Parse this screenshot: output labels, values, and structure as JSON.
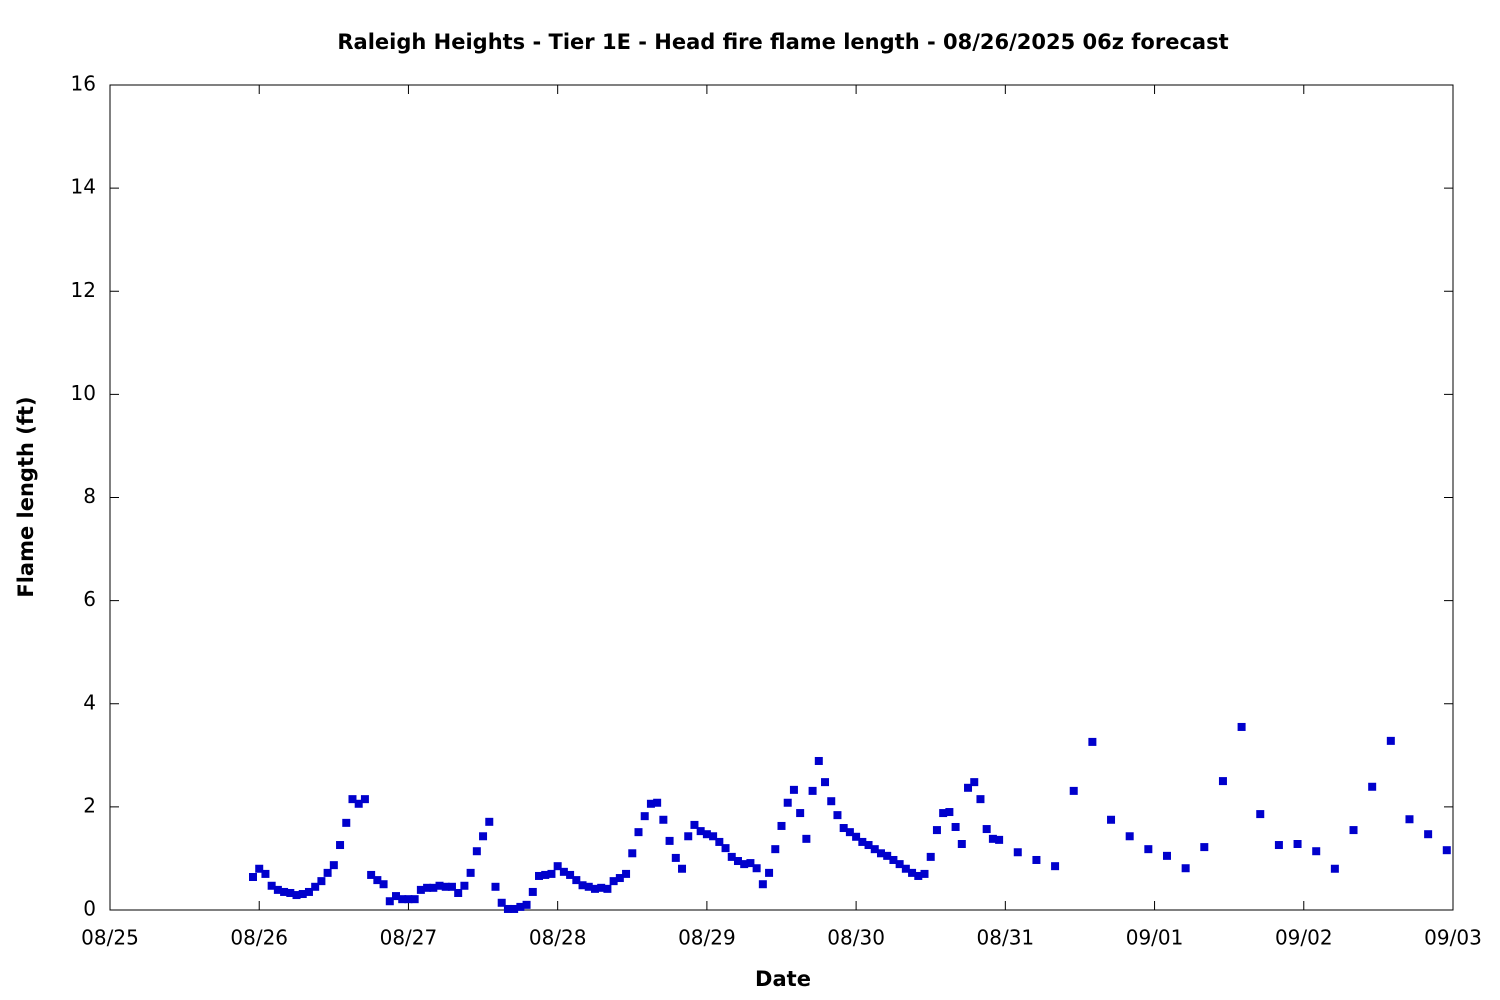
{
  "chart_data": {
    "type": "scatter",
    "title": "Raleigh Heights - Tier 1E - Head fire flame length - 08/26/2025 06z forecast",
    "xlabel": "Date",
    "ylabel": "Flame length (ft)",
    "color": "#0000cc",
    "xlim": [
      0,
      216
    ],
    "ylim": [
      0,
      16
    ],
    "xticks": [
      {
        "value": 0,
        "label": "08/25"
      },
      {
        "value": 24,
        "label": "08/26"
      },
      {
        "value": 48,
        "label": "08/27"
      },
      {
        "value": 72,
        "label": "08/28"
      },
      {
        "value": 96,
        "label": "08/29"
      },
      {
        "value": 120,
        "label": "08/30"
      },
      {
        "value": 144,
        "label": "08/31"
      },
      {
        "value": 168,
        "label": "09/01"
      },
      {
        "value": 192,
        "label": "09/02"
      },
      {
        "value": 216,
        "label": "09/03"
      }
    ],
    "yticks": [
      0,
      2,
      4,
      6,
      8,
      10,
      12,
      14,
      16
    ],
    "x": [
      23,
      24,
      25,
      26,
      27,
      28,
      29,
      30,
      31,
      32,
      33,
      34,
      35,
      36,
      37,
      38,
      39,
      40,
      41,
      42,
      43,
      44,
      45,
      46,
      47,
      48,
      49,
      50,
      51,
      52,
      53,
      54,
      55,
      56,
      57,
      58,
      59,
      60,
      61,
      62,
      63,
      64,
      65,
      66,
      67,
      68,
      69,
      70,
      71,
      72,
      73,
      74,
      75,
      76,
      77,
      78,
      79,
      80,
      81,
      82,
      83,
      84,
      85,
      86,
      87,
      88,
      89,
      90,
      91,
      92,
      93,
      94,
      95,
      96,
      97,
      98,
      99,
      100,
      101,
      102,
      103,
      104,
      105,
      106,
      107,
      108,
      109,
      110,
      111,
      112,
      113,
      114,
      115,
      116,
      117,
      118,
      119,
      120,
      121,
      122,
      123,
      124,
      125,
      126,
      127,
      128,
      129,
      130,
      131,
      132,
      133,
      134,
      135,
      136,
      137,
      138,
      139,
      140,
      141,
      142,
      143,
      146,
      149,
      152,
      155,
      158,
      161,
      164,
      167,
      170,
      173,
      176,
      179,
      182,
      185,
      188,
      191,
      194,
      197,
      200,
      203,
      206,
      209,
      212,
      215
    ],
    "values": [
      0.64,
      0.8,
      0.7,
      0.47,
      0.39,
      0.35,
      0.33,
      0.29,
      0.31,
      0.35,
      0.45,
      0.56,
      0.72,
      0.87,
      1.26,
      1.69,
      2.15,
      2.06,
      2.15,
      0.68,
      0.58,
      0.5,
      0.17,
      0.27,
      0.21,
      0.21,
      0.21,
      0.39,
      0.43,
      0.43,
      0.47,
      0.45,
      0.45,
      0.33,
      0.47,
      0.72,
      1.14,
      1.43,
      1.71,
      0.45,
      0.14,
      0.02,
      0.02,
      0.06,
      0.1,
      0.35,
      0.66,
      0.68,
      0.7,
      0.85,
      0.74,
      0.68,
      0.58,
      0.48,
      0.45,
      0.41,
      0.43,
      0.41,
      0.56,
      0.62,
      0.7,
      1.1,
      1.51,
      1.82,
      2.06,
      2.08,
      1.75,
      1.34,
      1.01,
      0.8,
      1.43,
      1.65,
      1.53,
      1.47,
      1.43,
      1.32,
      1.2,
      1.03,
      0.95,
      0.89,
      0.91,
      0.81,
      0.5,
      0.72,
      1.18,
      1.63,
      2.08,
      2.33,
      1.88,
      1.38,
      2.31,
      2.89,
      2.48,
      2.11,
      1.84,
      1.59,
      1.51,
      1.42,
      1.32,
      1.26,
      1.18,
      1.1,
      1.05,
      0.97,
      0.89,
      0.8,
      0.72,
      0.66,
      0.7,
      1.03,
      1.55,
      1.88,
      1.9,
      1.61,
      1.28,
      2.37,
      2.48,
      2.15,
      1.57,
      1.38,
      1.36,
      1.12,
      0.97,
      0.85,
      2.31,
      3.26,
      1.75,
      1.43,
      1.18,
      1.05,
      0.81,
      1.22,
      2.5,
      3.55,
      1.86,
      1.26,
      1.28,
      1.14,
      0.8,
      1.55,
      2.39,
      3.28,
      1.76,
      1.47,
      1.16
    ]
  }
}
